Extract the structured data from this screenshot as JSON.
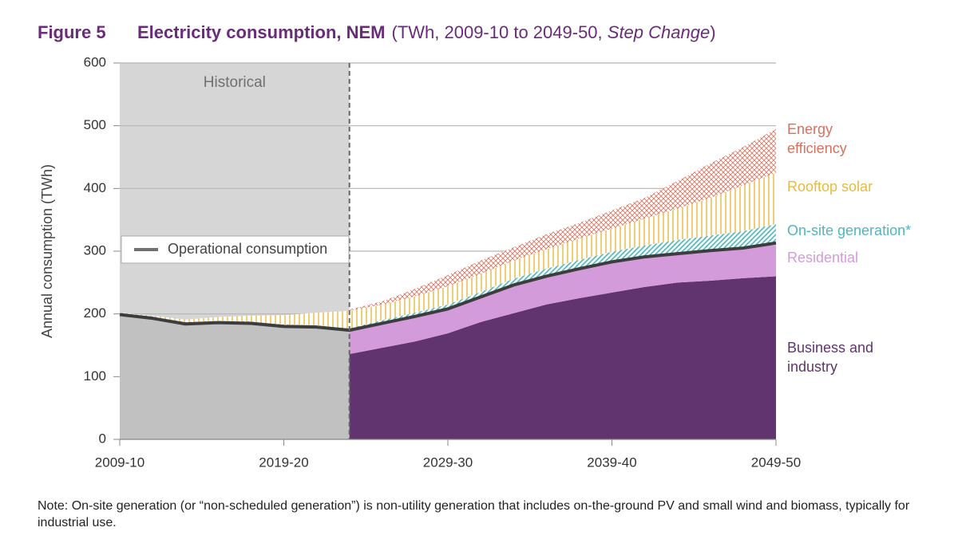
{
  "chart_data": {
    "type": "area",
    "figure_label": "Figure 5",
    "title": "Electricity consumption, NEM",
    "subtitle": "(TWh, 2009-10 to 2049-50, ",
    "subtitle_italic": "Step Change",
    "subtitle_end": ")",
    "ylabel": "Annual consumption (TWh)",
    "annotation": "Historical",
    "note": "Note: On-site generation (or “non-scheduled generation”) is non-utility generation that includes on-the-ground PV and small wind and biomass, typically for industrial use.",
    "x": [
      2009,
      2011,
      2013,
      2015,
      2017,
      2019,
      2021,
      2023,
      2025,
      2027,
      2029,
      2031,
      2033,
      2035,
      2037,
      2039,
      2041,
      2043,
      2045,
      2047,
      2049
    ],
    "xlim": [
      2009,
      2049
    ],
    "xticks": [
      {
        "value": 2009,
        "label": "2009-10"
      },
      {
        "value": 2019,
        "label": "2019-20"
      },
      {
        "value": 2029,
        "label": "2029-30"
      },
      {
        "value": 2039,
        "label": "2039-40"
      },
      {
        "value": 2049,
        "label": "2049-50"
      }
    ],
    "ylim": [
      0,
      600
    ],
    "yticks": [
      0,
      100,
      200,
      300,
      400,
      500,
      600
    ],
    "grid": true,
    "series": [
      {
        "name": "Operational consumption",
        "color": "#3d3d3d",
        "values": [
          199,
          193,
          184,
          186,
          185,
          180,
          179,
          174,
          185,
          196,
          208,
          227,
          246,
          260,
          272,
          283,
          291,
          296,
          301,
          305,
          313
        ]
      },
      {
        "name": "Business and industry",
        "color": "#61336f",
        "pattern": "solid",
        "values": [
          null,
          null,
          null,
          null,
          null,
          null,
          null,
          136,
          146,
          156,
          169,
          187,
          201,
          215,
          225,
          234,
          243,
          250,
          253,
          257,
          260
        ]
      },
      {
        "name": "Residential",
        "color": "#d49bda",
        "pattern": "solid",
        "values": [
          null,
          null,
          null,
          null,
          null,
          null,
          null,
          38,
          39,
          40,
          39,
          40,
          45,
          45,
          47,
          49,
          48,
          46,
          48,
          48,
          50
        ]
      },
      {
        "name": "On-site generation*",
        "color": "#4fb6be",
        "pattern": "diagonal",
        "values": [
          2,
          2,
          3,
          3,
          3,
          3,
          3,
          3,
          5,
          6,
          7,
          8,
          10,
          12,
          14,
          16,
          18,
          22,
          24,
          27,
          30
        ]
      },
      {
        "name": "Rooftop solar",
        "color": "#e6bb3f",
        "pattern": "vertical",
        "values": [
          1,
          2,
          4,
          6,
          9,
          15,
          20,
          28,
          25,
          26,
          29,
          29,
          29,
          31,
          34,
          37,
          43,
          50,
          60,
          73,
          82
        ]
      },
      {
        "name": "Energy efficiency",
        "color": "#d8705e",
        "pattern": "cross",
        "values": [
          null,
          null,
          null,
          null,
          null,
          null,
          null,
          2,
          5,
          12,
          18,
          21,
          21,
          24,
          25,
          29,
          33,
          44,
          55,
          61,
          70
        ]
      }
    ]
  }
}
